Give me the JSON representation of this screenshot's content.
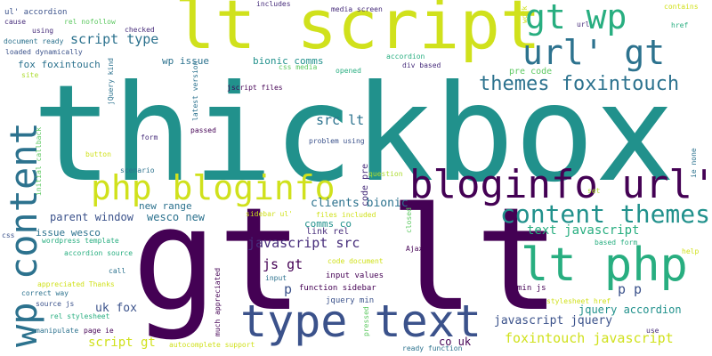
{
  "word_cloud": {
    "words": [
      {
        "text": "thickbox",
        "color": "#21918c"
      },
      {
        "text": "gt lt",
        "color": "#440154"
      },
      {
        "text": "lt script",
        "color": "#d0e11c"
      },
      {
        "text": "gt wp",
        "color": "#28ae80"
      },
      {
        "text": "url' gt",
        "color": "#2c728e"
      },
      {
        "text": "themes foxintouch",
        "color": "#2c728e"
      },
      {
        "text": "php bloginfo",
        "color": "#d0e11c"
      },
      {
        "text": "bloginfo url'",
        "color": "#440154"
      },
      {
        "text": "content themes",
        "color": "#21918c"
      },
      {
        "text": "lt php",
        "color": "#28ae80"
      },
      {
        "text": "type text",
        "color": "#3b528b"
      },
      {
        "text": "wp content",
        "color": "#2c728e"
      },
      {
        "text": "script type",
        "color": "#2c728e"
      },
      {
        "text": "wp issue",
        "color": "#2c728e"
      },
      {
        "text": "bionic comms",
        "color": "#21918c"
      },
      {
        "text": "src lt",
        "color": "#2c728e"
      },
      {
        "text": "pre code",
        "color": "#5ec962"
      },
      {
        "text": "fox foxintouch",
        "color": "#2c728e"
      },
      {
        "text": "parent window",
        "color": "#3b528b"
      },
      {
        "text": "wesco new",
        "color": "#2c728e"
      },
      {
        "text": "new range",
        "color": "#2c728e"
      },
      {
        "text": "clients bionic",
        "color": "#2c728e"
      },
      {
        "text": "text javascript",
        "color": "#28ae80"
      },
      {
        "text": "javascript src",
        "color": "#472d7b"
      },
      {
        "text": "js gt",
        "color": "#440154"
      },
      {
        "text": "issue wesco",
        "color": "#2c728e"
      },
      {
        "text": "comms co",
        "color": "#21918c"
      },
      {
        "text": "link rel",
        "color": "#472d7b"
      },
      {
        "text": "input values",
        "color": "#440154"
      },
      {
        "text": "jquery min",
        "color": "#3b528b"
      },
      {
        "text": "function sidebar",
        "color": "#440154"
      },
      {
        "text": "p p",
        "color": "#3b528b"
      },
      {
        "text": "min js",
        "color": "#440154"
      },
      {
        "text": "jquery accordion",
        "color": "#21918c"
      },
      {
        "text": "javascript jquery",
        "color": "#3b528b"
      },
      {
        "text": "foxintouch javascript",
        "color": "#d0e11c"
      },
      {
        "text": "co uk",
        "color": "#440154"
      },
      {
        "text": "uk fox",
        "color": "#3b528b"
      },
      {
        "text": "script gt",
        "color": "#d0e11c"
      },
      {
        "text": "p",
        "color": "#3b528b"
      },
      {
        "text": "ul' accordion",
        "color": "#3b528b"
      },
      {
        "text": "cause",
        "color": "#472d7b"
      },
      {
        "text": "rel nofollow",
        "color": "#5ec962"
      },
      {
        "text": "using",
        "color": "#472d7b"
      },
      {
        "text": "document ready",
        "color": "#2c728e"
      },
      {
        "text": "loaded dynamically",
        "color": "#3b528b"
      },
      {
        "text": "site",
        "color": "#addc30"
      },
      {
        "text": "includes",
        "color": "#472d7b"
      },
      {
        "text": "media screen",
        "color": "#472d7b"
      },
      {
        "text": "checked",
        "color": "#472d7b"
      },
      {
        "text": "css media",
        "color": "#5ec962"
      },
      {
        "text": "opened",
        "color": "#28ae80"
      },
      {
        "text": "accordion",
        "color": "#28ae80"
      },
      {
        "text": "div based",
        "color": "#472d7b"
      },
      {
        "text": "jscript files",
        "color": "#440154"
      },
      {
        "text": "passed",
        "color": "#440154"
      },
      {
        "text": "form",
        "color": "#472d7b"
      },
      {
        "text": "problem using",
        "color": "#3b528b"
      },
      {
        "text": "question",
        "color": "#addc30"
      },
      {
        "text": "button",
        "color": "#d0e11c"
      },
      {
        "text": "scenario",
        "color": "#2c728e"
      },
      {
        "text": "sidebar ul'",
        "color": "#d0e11c"
      },
      {
        "text": "files included",
        "color": "#d0e11c"
      },
      {
        "text": "wordpress template",
        "color": "#28ae80"
      },
      {
        "text": "accordion source",
        "color": "#28ae80"
      },
      {
        "text": "call",
        "color": "#2c728e"
      },
      {
        "text": "appreciated Thanks",
        "color": "#d0e11c"
      },
      {
        "text": "correct way",
        "color": "#2c728e"
      },
      {
        "text": "source js",
        "color": "#3b528b"
      },
      {
        "text": "rel stylesheet",
        "color": "#28ae80"
      },
      {
        "text": "manipulate",
        "color": "#2c728e"
      },
      {
        "text": "page ie",
        "color": "#440154"
      },
      {
        "text": "autocomplete support",
        "color": "#d0e11c"
      },
      {
        "text": "Ajax",
        "color": "#440154"
      },
      {
        "text": "code document",
        "color": "#d0e11c"
      },
      {
        "text": "input",
        "color": "#2c728e"
      },
      {
        "text": "ready function",
        "color": "#2c728e"
      },
      {
        "text": "set",
        "color": "#addc30"
      },
      {
        "text": "based form",
        "color": "#28ae80"
      },
      {
        "text": "help",
        "color": "#d0e11c"
      },
      {
        "text": "stylesheet href",
        "color": "#d0e11c"
      },
      {
        "text": "use",
        "color": "#472d7b"
      },
      {
        "text": "contains",
        "color": "#d0e11c"
      },
      {
        "text": "href",
        "color": "#28ae80"
      },
      {
        "text": "url",
        "color": "#472d7b"
      },
      {
        "text": "work",
        "color": "#d0e11c"
      },
      {
        "text": "jQuery kind",
        "color": "#2c728e"
      },
      {
        "text": "latest version",
        "color": "#2c728e"
      },
      {
        "text": "much appreciated",
        "color": "#440154"
      },
      {
        "text": "initial callback",
        "color": "#5ec962"
      },
      {
        "text": "css",
        "color": "#3b528b"
      },
      {
        "text": "code pre",
        "color": "#472d7b"
      },
      {
        "text": "closed",
        "color": "#5ec962"
      },
      {
        "text": "pressed",
        "color": "#5ec962"
      },
      {
        "text": "ie none",
        "color": "#2c728e"
      }
    ]
  }
}
